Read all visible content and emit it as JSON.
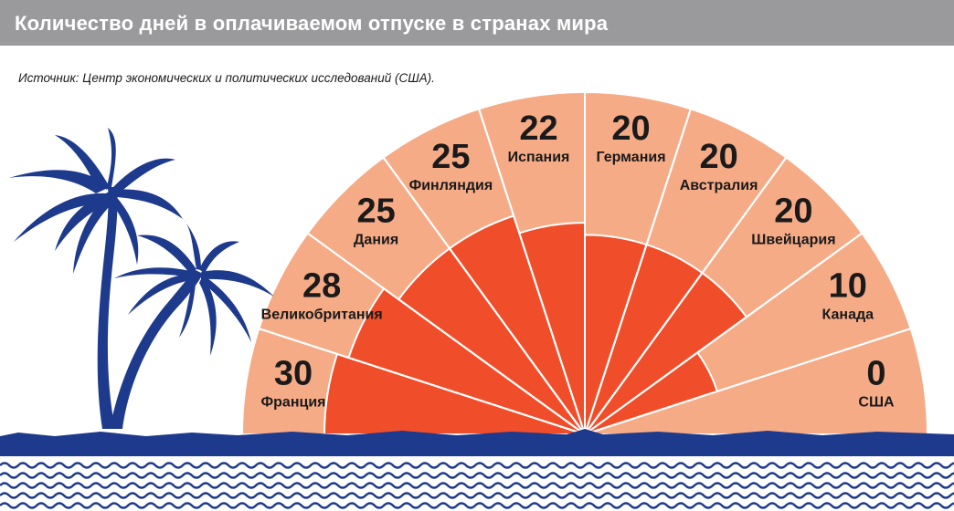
{
  "header": {
    "title": "Количество дней в оплачиваемом отпуске в странах мира"
  },
  "source": "Источник: Центр экономических и политических исследований (США).",
  "colors": {
    "title_bar": "#9a9a9c",
    "outer_ray": "#f6ab87",
    "inner_ray": "#f04e2a",
    "palm": "#1e3a8c",
    "sea": "#1e3a8c",
    "text": "#1a1a1a"
  },
  "chart_data": {
    "type": "radial-bar",
    "title": "Количество дней в оплачиваемом отпуске в странах мира",
    "categories": [
      "Франция",
      "Великобритания",
      "Дания",
      "Финляндия",
      "Испания",
      "Германия",
      "Австралия",
      "Швейцария",
      "Канада",
      "США"
    ],
    "values": [
      30,
      28,
      25,
      25,
      22,
      20,
      20,
      20,
      10,
      0
    ],
    "ylim": [
      0,
      30
    ]
  }
}
